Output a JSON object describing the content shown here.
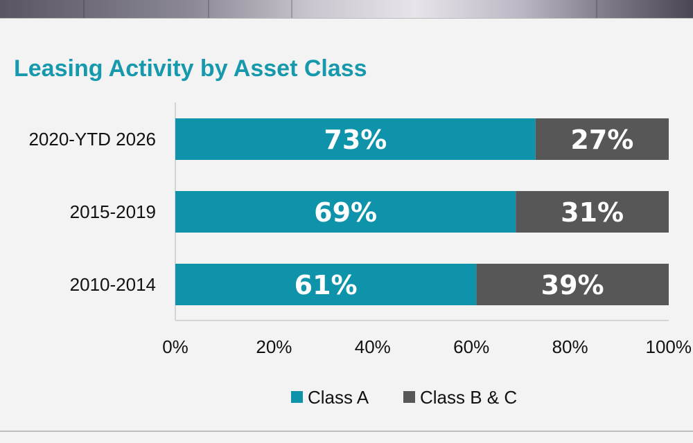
{
  "chart_data": {
    "type": "bar",
    "orientation": "horizontal",
    "stacked": true,
    "title": "Leasing Activity by Asset Class",
    "categories": [
      "2020-YTD 2026",
      "2015-2019",
      "2010-2014"
    ],
    "series": [
      {
        "name": "Class A",
        "values": [
          73,
          69,
          61
        ],
        "labels": [
          "73%",
          "69%",
          "61%"
        ],
        "color": "#0e93ab"
      },
      {
        "name": "Class B & C",
        "values": [
          27,
          31,
          39
        ],
        "labels": [
          "27%",
          "31%",
          "39%"
        ],
        "color": "#575757"
      }
    ],
    "xlim": [
      0,
      100
    ],
    "xticks": [
      "0%",
      "20%",
      "40%",
      "60%",
      "80%",
      "100%"
    ],
    "grid": false,
    "legend_position": "bottom"
  }
}
